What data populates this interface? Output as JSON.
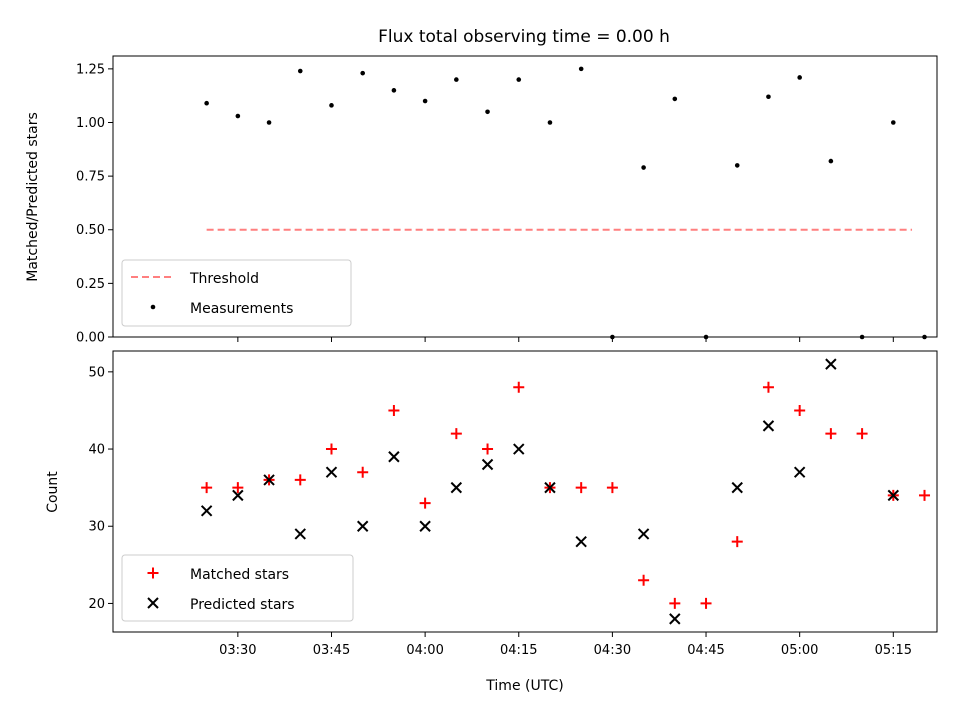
{
  "title": "Flux total observing time = 0.00 h",
  "xlabel": "Time (UTC)",
  "chart_data": [
    {
      "type": "scatter",
      "panel": "top",
      "ylabel": "Matched/Predicted stars",
      "ylim": [
        0.0,
        1.31
      ],
      "xlim": [
        "03:10",
        "05:22"
      ],
      "yticks": [
        0.0,
        0.25,
        0.5,
        0.75,
        1.0,
        1.25
      ],
      "ytick_labels": [
        "0.00",
        "0.25",
        "0.50",
        "0.75",
        "1.00",
        "1.25"
      ],
      "xticks": [
        "03:30",
        "03:45",
        "04:00",
        "04:15",
        "04:30",
        "04:45",
        "05:00",
        "05:15"
      ],
      "legend": {
        "placement": "lower-left",
        "entries": [
          "Threshold",
          "Measurements"
        ]
      },
      "threshold": {
        "name": "Threshold",
        "y": 0.5,
        "x_start": "03:25",
        "x_end": "05:18",
        "color": "#ff7f7f",
        "style": "dashed"
      },
      "series": [
        {
          "name": "Measurements",
          "color": "#000000",
          "marker": "dot",
          "x": [
            "03:25",
            "03:30",
            "03:35",
            "03:40",
            "03:45",
            "03:50",
            "03:55",
            "04:00",
            "04:05",
            "04:10",
            "04:15",
            "04:20",
            "04:25",
            "04:30",
            "04:35",
            "04:40",
            "04:45",
            "04:50",
            "04:55",
            "05:00",
            "05:05",
            "05:10",
            "05:15",
            "05:20"
          ],
          "y": [
            1.09,
            1.03,
            1.0,
            1.24,
            1.08,
            1.23,
            1.15,
            1.1,
            1.2,
            1.05,
            1.2,
            1.0,
            1.25,
            0.0,
            0.79,
            1.11,
            0.0,
            0.8,
            1.12,
            1.21,
            0.82,
            0.0,
            1.0,
            0.0
          ]
        }
      ]
    },
    {
      "type": "scatter",
      "panel": "bottom",
      "ylabel": "Count",
      "ylim": [
        16.3,
        52.7
      ],
      "xlim": [
        "03:10",
        "05:22"
      ],
      "yticks": [
        20,
        30,
        40,
        50
      ],
      "xticks": [
        "03:30",
        "03:45",
        "04:00",
        "04:15",
        "04:30",
        "04:45",
        "05:00",
        "05:15"
      ],
      "legend": {
        "placement": "lower-left",
        "entries": [
          "Matched stars",
          "Predicted stars"
        ]
      },
      "series": [
        {
          "name": "Matched stars",
          "color": "#ff0000",
          "marker": "plus",
          "x": [
            "03:25",
            "03:30",
            "03:35",
            "03:40",
            "03:45",
            "03:50",
            "03:55",
            "04:00",
            "04:05",
            "04:10",
            "04:15",
            "04:20",
            "04:25",
            "04:30",
            "04:35",
            "04:40",
            "04:45",
            "04:50",
            "04:55",
            "05:00",
            "05:05",
            "05:10",
            "05:15",
            "05:20"
          ],
          "y": [
            35,
            35,
            36,
            36,
            40,
            37,
            45,
            33,
            42,
            40,
            48,
            35,
            35,
            35,
            23,
            20,
            20,
            28,
            48,
            45,
            42,
            42,
            34,
            34
          ]
        },
        {
          "name": "Predicted stars",
          "color": "#000000",
          "marker": "x",
          "x": [
            "03:25",
            "03:30",
            "03:35",
            "03:40",
            "03:45",
            "03:50",
            "03:55",
            "04:00",
            "04:05",
            "04:10",
            "04:15",
            "04:20",
            "04:25",
            "04:35",
            "04:40",
            "04:50",
            "04:55",
            "05:00",
            "05:05",
            "05:15"
          ],
          "y": [
            32,
            34,
            36,
            29,
            37,
            30,
            39,
            30,
            35,
            38,
            40,
            35,
            28,
            29,
            18,
            35,
            43,
            37,
            51,
            34
          ]
        }
      ]
    }
  ]
}
